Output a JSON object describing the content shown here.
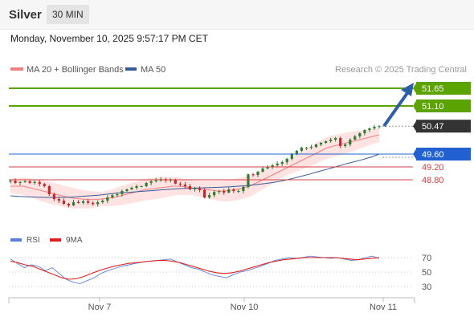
{
  "header": {
    "instrument": "Silver",
    "timeframe": "30 MIN",
    "datetime": "Monday, November 10, 2025 9:57:17 PM CET"
  },
  "legend": {
    "ma20_bb": "MA 20 + Bollinger Bands",
    "ma50": "MA 50",
    "copyright": "Research © 2025 Trading Central",
    "rsi": "RSI",
    "rsi_ma": "9MA"
  },
  "colors": {
    "candle_up": "#2e7d32",
    "candle_down": "#c62828",
    "ma20": "#f08080",
    "bb_fill": "#ffe0e0",
    "ma50": "#3a5a98",
    "resistance": "#5aa300",
    "support": "#d04040",
    "pivot": "#2060d0",
    "last_price": "#333333",
    "rsi_line": "#5c7fd6",
    "rsi_ma_line": "#e02020",
    "arrow": "#2f5ea8"
  },
  "chart_data": [
    {
      "type": "candlestick",
      "title": "",
      "x_ticks": [
        "Nov 7",
        "Nov 10",
        "Nov 11"
      ],
      "ylim": [
        47.5,
        51.9
      ],
      "close": [
        48.77,
        48.7,
        48.73,
        48.75,
        48.7,
        48.73,
        48.67,
        48.6,
        48.35,
        48.2,
        48.15,
        48.05,
        48.0,
        48.1,
        48.08,
        48.13,
        48.08,
        48.04,
        48.1,
        48.15,
        48.25,
        48.32,
        48.35,
        48.45,
        48.5,
        48.55,
        48.6,
        48.6,
        48.7,
        48.75,
        48.78,
        48.82,
        48.78,
        48.8,
        48.68,
        48.65,
        48.6,
        48.5,
        48.53,
        48.48,
        48.25,
        48.32,
        48.42,
        48.45,
        48.4,
        48.5,
        48.45,
        48.45,
        48.58,
        48.97,
        48.95,
        49.05,
        49.15,
        49.2,
        49.25,
        49.3,
        49.35,
        49.45,
        49.6,
        49.7,
        49.8,
        49.8,
        49.82,
        49.9,
        49.95,
        50.0,
        50.05,
        50.1,
        49.85,
        49.9,
        50.05,
        50.15,
        50.25,
        50.35,
        50.4,
        50.45,
        50.47
      ],
      "ma20": [
        48.6,
        48.6,
        48.6,
        48.55,
        48.5,
        48.45,
        48.4,
        48.35,
        48.3,
        48.25,
        48.22,
        48.2,
        48.18,
        48.18,
        48.2,
        48.22,
        48.25,
        48.3,
        48.35,
        48.4,
        48.45,
        48.5,
        48.52,
        48.55,
        48.57,
        48.6,
        48.6,
        48.58,
        48.55,
        48.52,
        48.5,
        48.48,
        48.45,
        48.45,
        48.47,
        48.5,
        48.55,
        48.6,
        48.7,
        48.8,
        48.9,
        49.0,
        49.1,
        49.2,
        49.3,
        49.4,
        49.5,
        49.6,
        49.7,
        49.8,
        49.85,
        49.9,
        49.95,
        50.0,
        50.05,
        50.1,
        50.15,
        50.2
      ],
      "ma50": [
        48.3,
        48.28,
        48.27,
        48.26,
        48.25,
        48.25,
        48.25,
        48.26,
        48.28,
        48.3,
        48.32,
        48.35,
        48.38,
        48.4,
        48.42,
        48.44,
        48.46,
        48.48,
        48.5,
        48.52,
        48.53,
        48.54,
        48.55,
        48.56,
        48.57,
        48.58,
        48.6,
        48.62,
        48.65,
        48.68,
        48.72,
        48.77,
        48.83,
        48.9,
        48.97,
        49.05,
        49.12,
        49.2,
        49.28,
        49.35,
        49.42,
        49.5,
        49.6
      ],
      "levels": [
        {
          "label": "51.65",
          "value": 51.65,
          "kind": "resistance"
        },
        {
          "label": "51.10",
          "value": 51.1,
          "kind": "resistance"
        },
        {
          "label": "50.47",
          "value": 50.47,
          "kind": "last"
        },
        {
          "label": "49.60",
          "value": 49.6,
          "kind": "pivot"
        },
        {
          "label": "49.20",
          "value": 49.2,
          "kind": "support"
        },
        {
          "label": "48.80",
          "value": 48.8,
          "kind": "support"
        }
      ]
    },
    {
      "type": "line",
      "title": "",
      "ylim": [
        20,
        80
      ],
      "y_ticks": [
        {
          "label": "70",
          "value": 70
        },
        {
          "label": "50",
          "value": 50
        },
        {
          "label": "30",
          "value": 30
        }
      ],
      "series": [
        {
          "name": "RSI",
          "values": [
            68,
            62,
            56,
            60,
            58,
            52,
            56,
            48,
            40,
            36,
            34,
            38,
            42,
            48,
            52,
            55,
            58,
            60,
            62,
            64,
            65,
            66,
            67,
            68,
            64,
            60,
            56,
            54,
            50,
            46,
            44,
            42,
            46,
            50,
            52,
            55,
            58,
            62,
            66,
            68,
            70,
            69,
            70,
            72,
            71,
            70,
            69,
            70,
            68,
            66,
            67,
            70,
            72,
            69
          ]
        },
        {
          "name": "9MA",
          "values": [
            65,
            63,
            60,
            58,
            54,
            50,
            46,
            42,
            40,
            41,
            44,
            48,
            52,
            55,
            58,
            60,
            62,
            63,
            64,
            65,
            66,
            66,
            65,
            63,
            60,
            57,
            54,
            51,
            49,
            48,
            49,
            51,
            54,
            57,
            60,
            63,
            65,
            67,
            68,
            69,
            70,
            70,
            70,
            70,
            70,
            69,
            68,
            67,
            68,
            69,
            70
          ]
        }
      ]
    }
  ]
}
